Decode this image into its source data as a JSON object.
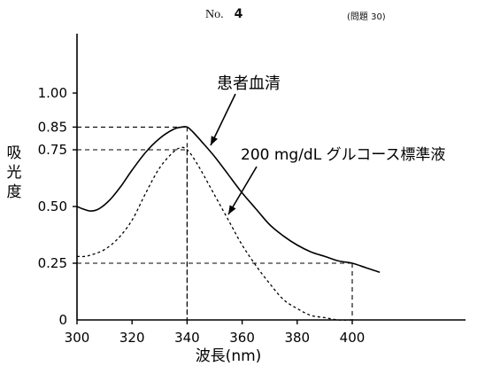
{
  "header": {
    "no_label": "No.",
    "no_value": "4",
    "question_ref": "(問題 30)"
  },
  "chart_data": {
    "type": "line",
    "title": "",
    "xlabel": "波長(nm)",
    "ylabel": "吸光度",
    "xlim": [
      300,
      410
    ],
    "ylim": [
      0,
      1.0
    ],
    "x_ticks": [
      300,
      320,
      340,
      360,
      380,
      400
    ],
    "y_ticks": [
      0,
      0.25,
      0.5,
      0.75,
      0.85,
      1.0
    ],
    "y_tick_labels": [
      "0",
      "0.25",
      "0.50",
      "0.75",
      "0.85",
      "1.00"
    ],
    "grid": false,
    "series": [
      {
        "name": "患者血清",
        "style": "solid",
        "color": "#000000",
        "x": [
          300,
          302,
          305,
          308,
          312,
          316,
          320,
          325,
          330,
          335,
          338,
          340,
          342,
          345,
          350,
          355,
          360,
          365,
          370,
          375,
          380,
          385,
          390,
          395,
          400,
          405,
          410
        ],
        "y": [
          0.5,
          0.49,
          0.48,
          0.49,
          0.53,
          0.59,
          0.66,
          0.74,
          0.8,
          0.84,
          0.85,
          0.85,
          0.83,
          0.79,
          0.72,
          0.64,
          0.56,
          0.49,
          0.42,
          0.37,
          0.33,
          0.3,
          0.28,
          0.26,
          0.25,
          0.23,
          0.21
        ]
      },
      {
        "name": "200 mg/dL グルコース標準液",
        "style": "dashed",
        "color": "#000000",
        "x": [
          300,
          303,
          306,
          310,
          315,
          320,
          325,
          330,
          335,
          338,
          340,
          342,
          345,
          350,
          355,
          360,
          365,
          370,
          375,
          380,
          385,
          390,
          395,
          400
        ],
        "y": [
          0.28,
          0.28,
          0.29,
          0.31,
          0.36,
          0.44,
          0.56,
          0.67,
          0.74,
          0.76,
          0.75,
          0.72,
          0.66,
          0.55,
          0.44,
          0.33,
          0.24,
          0.16,
          0.09,
          0.05,
          0.02,
          0.01,
          0.0,
          0.0
        ]
      }
    ],
    "reference_lines": [
      {
        "x": 340,
        "y": 0.85
      },
      {
        "x": 340,
        "y": 0.75
      },
      {
        "x": 400,
        "y": 0.25
      }
    ],
    "annotations": [
      {
        "text": "患者血清",
        "points_to_series": 0
      },
      {
        "text": "200 mg/dL グルコース標準液",
        "points_to_series": 1
      }
    ]
  }
}
